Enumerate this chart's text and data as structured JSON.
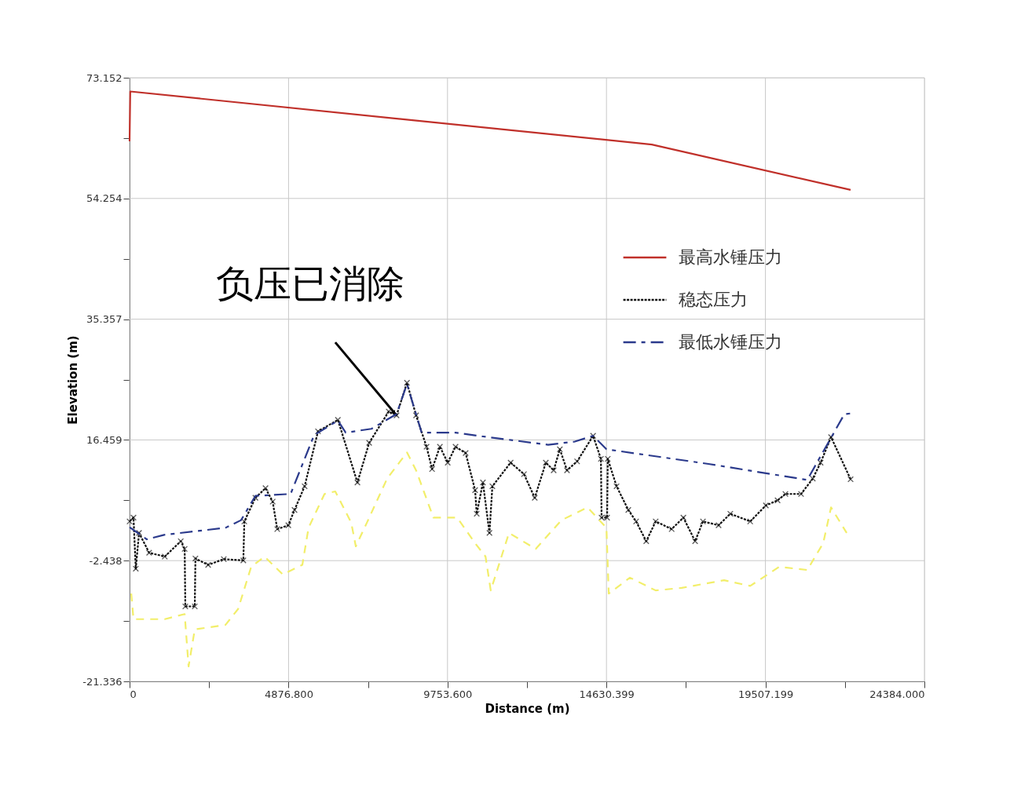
{
  "chart_data": {
    "type": "line",
    "xlabel": "Distance (m)",
    "ylabel": "Elevation (m)",
    "xlim": [
      0,
      24384
    ],
    "ylim": [
      -21.336,
      73.152
    ],
    "xticks": [
      0,
      {
        "value": 2438.4,
        "label": null
      },
      {
        "value": 4876.8,
        "label": "4876.800"
      },
      {
        "value": 7315.2,
        "label": null
      },
      {
        "value": 9753.6,
        "label": "9753.600"
      },
      {
        "value": 12192,
        "label": null
      },
      {
        "value": 14630.399,
        "label": "14630.399"
      },
      {
        "value": 17068.8,
        "label": null
      },
      {
        "value": 19507.199,
        "label": "19507.199"
      },
      {
        "value": 21945.6,
        "label": null
      },
      {
        "value": 24384,
        "label": "24384.000"
      }
    ],
    "yticks": [
      -21.336,
      {
        "value": -11.887,
        "label": null
      },
      -2.438,
      {
        "value": 7.0105,
        "label": null
      },
      16.459,
      {
        "value": 25.908,
        "label": null
      },
      35.357,
      {
        "value": 44.8055,
        "label": null
      },
      54.254,
      {
        "value": 63.703,
        "label": null
      },
      73.152
    ],
    "grid": true,
    "legend": "top right",
    "series": [
      {
        "name": "最高水锤压力",
        "color": "#c0302a",
        "line_style": "solid",
        "x": [
          0,
          20,
          16020,
          22120
        ],
        "values": [
          63.2,
          71.0,
          62.7,
          55.6
        ]
      },
      {
        "name": "稳态压力",
        "color": "#111111",
        "line_style": "dotted",
        "marker": "cross",
        "x": [
          0,
          120,
          190,
          290,
          600,
          1080,
          1570,
          1690,
          1710,
          2000,
          2020,
          2410,
          2890,
          3490,
          3520,
          3860,
          4170,
          4390,
          4530,
          4870,
          5060,
          5370,
          5780,
          6390,
          6990,
          7350,
          7950,
          8190,
          8510,
          8790,
          9110,
          9280,
          9520,
          9760,
          10000,
          10310,
          10600,
          10650,
          10840,
          11040,
          11130,
          11690,
          12100,
          12430,
          12770,
          13010,
          13200,
          13420,
          13730,
          14220,
          14460,
          14480,
          14650,
          14670,
          14940,
          15300,
          15540,
          15850,
          16140,
          16630,
          16990,
          17350,
          17590,
          18070,
          18430,
          19040,
          19520,
          19880,
          20120,
          20600,
          20960,
          21200,
          21520,
          22120
        ],
        "values": [
          3.7,
          4.3,
          -3.7,
          1.9,
          -1.2,
          -1.8,
          0.6,
          -0.6,
          -9.6,
          -9.6,
          -2.1,
          -3.1,
          -2.2,
          -2.4,
          3.7,
          7.4,
          8.9,
          6.8,
          2.5,
          3.1,
          5.5,
          9.2,
          17.8,
          19.6,
          9.8,
          16.0,
          20.9,
          20.3,
          25.4,
          20.3,
          15.4,
          11.9,
          15.4,
          12.9,
          15.4,
          14.4,
          8.6,
          4.9,
          9.8,
          1.9,
          9.2,
          12.9,
          11.1,
          7.4,
          12.9,
          11.7,
          15.0,
          11.7,
          13.1,
          17.1,
          13.5,
          4.3,
          4.3,
          13.5,
          9.2,
          5.5,
          3.7,
          0.6,
          3.7,
          2.5,
          4.3,
          0.6,
          3.7,
          3.1,
          4.9,
          3.7,
          6.2,
          7.0,
          8.0,
          8.0,
          10.4,
          12.9,
          16.9,
          10.3
        ]
      },
      {
        "name": "最低水锤压力",
        "color": "#2b3a8c",
        "line_style": "dashed",
        "x": [
          0,
          530,
          1060,
          2940,
          3420,
          3860,
          4940,
          5660,
          6390,
          6630,
          7420,
          8190,
          8510,
          8960,
          10000,
          10840,
          12840,
          13660,
          14220,
          14630,
          17760,
          20790,
          21930,
          22120
        ],
        "values": [
          2.8,
          0.9,
          1.6,
          2.7,
          3.9,
          7.7,
          8.0,
          17.2,
          19.5,
          17.6,
          18.2,
          20.5,
          25.2,
          17.6,
          17.6,
          17.0,
          15.7,
          16.2,
          17.1,
          15.0,
          12.7,
          10.2,
          20.5,
          20.6
        ]
      },
      {
        "color": "#f2ee6a",
        "line_style": "dashed",
        "x": [
          50,
          120,
          1080,
          1690,
          1810,
          2000,
          2940,
          3330,
          3730,
          4140,
          4700,
          5300,
          5490,
          5980,
          6310,
          6800,
          6940,
          7280,
          7900,
          8510,
          8790,
          9320,
          10050,
          10600,
          10920,
          11080,
          11640,
          12460,
          13250,
          14050,
          14630,
          14700,
          15350,
          16140,
          16940,
          18240,
          19040,
          19930,
          20790,
          21280,
          21520,
          22000
        ],
        "values": [
          -7.6,
          -11.6,
          -11.6,
          -10.8,
          -19.0,
          -13.2,
          -12.5,
          -10.0,
          -3.4,
          -1.8,
          -4.6,
          -3.1,
          2.7,
          8.0,
          8.4,
          3.5,
          -0.2,
          3.5,
          10.4,
          14.5,
          11.7,
          4.3,
          4.3,
          0.3,
          -1.8,
          -7.1,
          1.9,
          -0.6,
          3.9,
          5.9,
          2.7,
          -7.6,
          -5.1,
          -7.1,
          -6.7,
          -5.5,
          -6.4,
          -3.4,
          -3.9,
          0.3,
          5.9,
          1.9
        ]
      }
    ],
    "annotations": [
      {
        "text": "负压已消除",
        "x": 8190,
        "y": 20.3
      }
    ]
  }
}
